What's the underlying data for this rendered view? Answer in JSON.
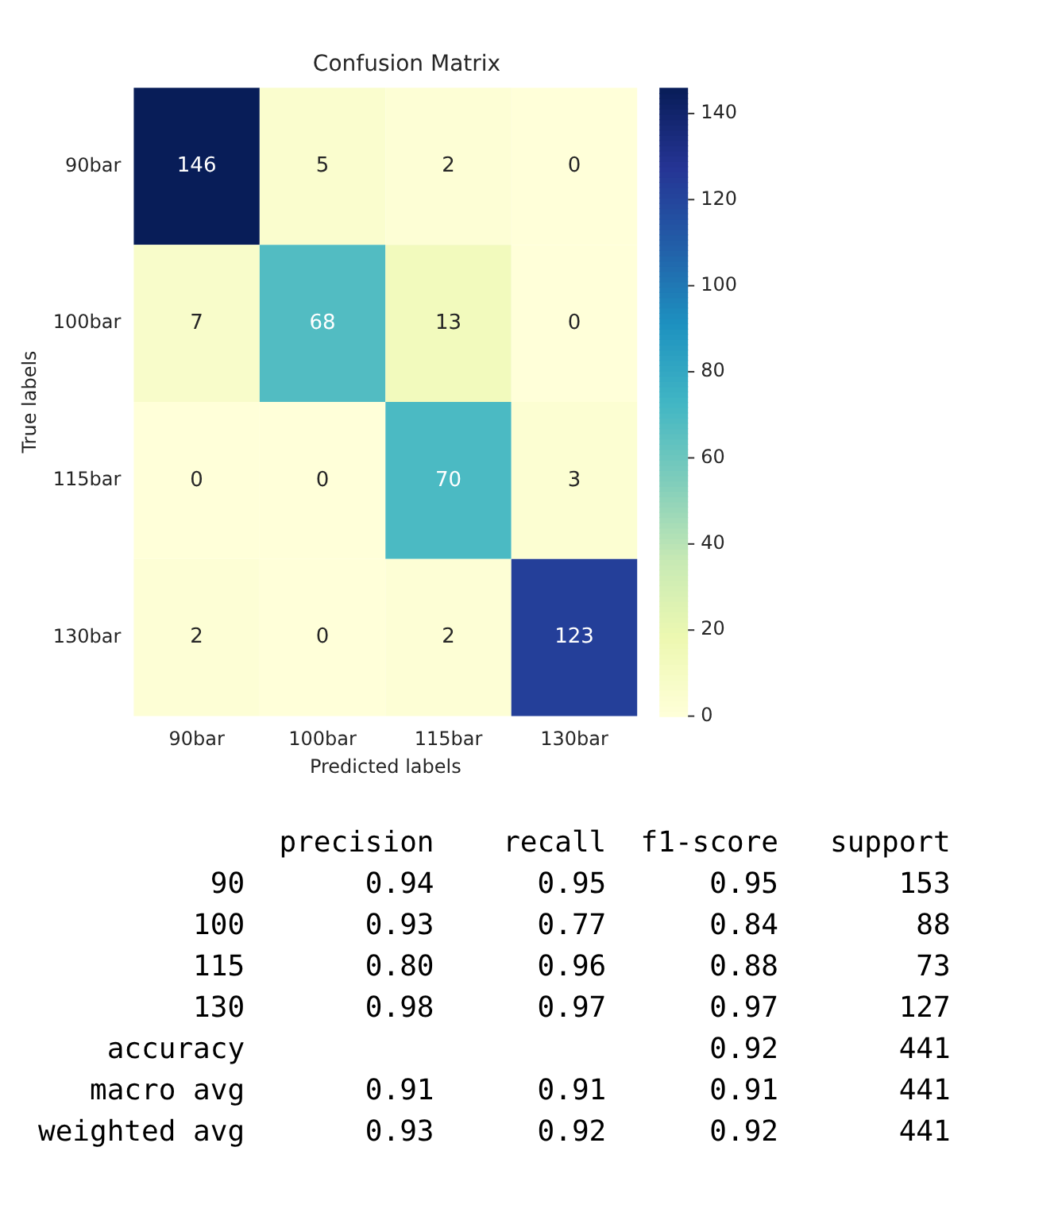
{
  "chart_data": [
    {
      "type": "heatmap",
      "title": "Confusion Matrix",
      "xlabel": "Predicted labels",
      "ylabel": "True labels",
      "categories": [
        "90bar",
        "100bar",
        "115bar",
        "130bar"
      ],
      "y_categories": [
        "90bar",
        "100bar",
        "115bar",
        "130bar"
      ],
      "cells": [
        [
          146,
          5,
          2,
          0
        ],
        [
          7,
          68,
          13,
          0
        ],
        [
          0,
          0,
          70,
          3
        ],
        [
          2,
          0,
          2,
          123
        ]
      ],
      "data_labels": true,
      "clim": [
        0,
        146
      ],
      "cticks": [
        0,
        20,
        40,
        60,
        80,
        100,
        120,
        140
      ]
    },
    {
      "type": "other",
      "annotations": [
        "              precision    recall  f1-score   support",
        "          90       0.94      0.95      0.95       153",
        "         100       0.93      0.77      0.84        88",
        "         115       0.80      0.96      0.88        73",
        "         130       0.98      0.97      0.97       127",
        "    accuracy                           0.92       441",
        "   macro avg       0.91      0.91      0.91       441",
        "weighted avg       0.93      0.92      0.92       441"
      ]
    }
  ]
}
